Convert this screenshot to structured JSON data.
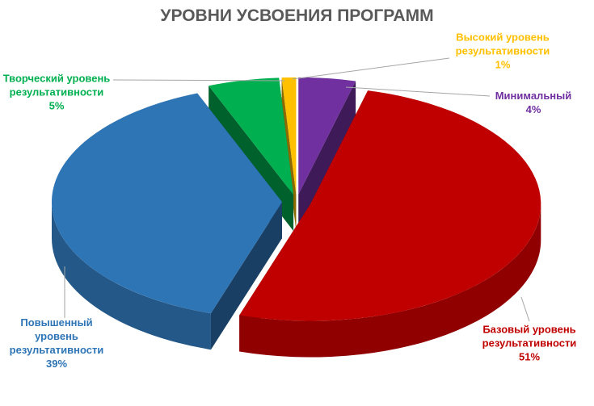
{
  "chart_data": {
    "type": "pie",
    "title": "УРОВНИ УСВОЕНИЯ ПРОГРАММ",
    "categories": [
      "Минимальный",
      "Базовый уровень результативности",
      "Повышенный уровень результативности",
      "Творческий уровень результативности",
      "Высокий уровень результативности"
    ],
    "values": [
      4,
      51,
      39,
      5,
      1
    ],
    "value_labels": [
      "4%",
      "51%",
      "39%",
      "5%",
      "1%"
    ],
    "colors": [
      "#7030a0",
      "#c00000",
      "#2e75b6",
      "#00b050",
      "#ffc000"
    ]
  }
}
